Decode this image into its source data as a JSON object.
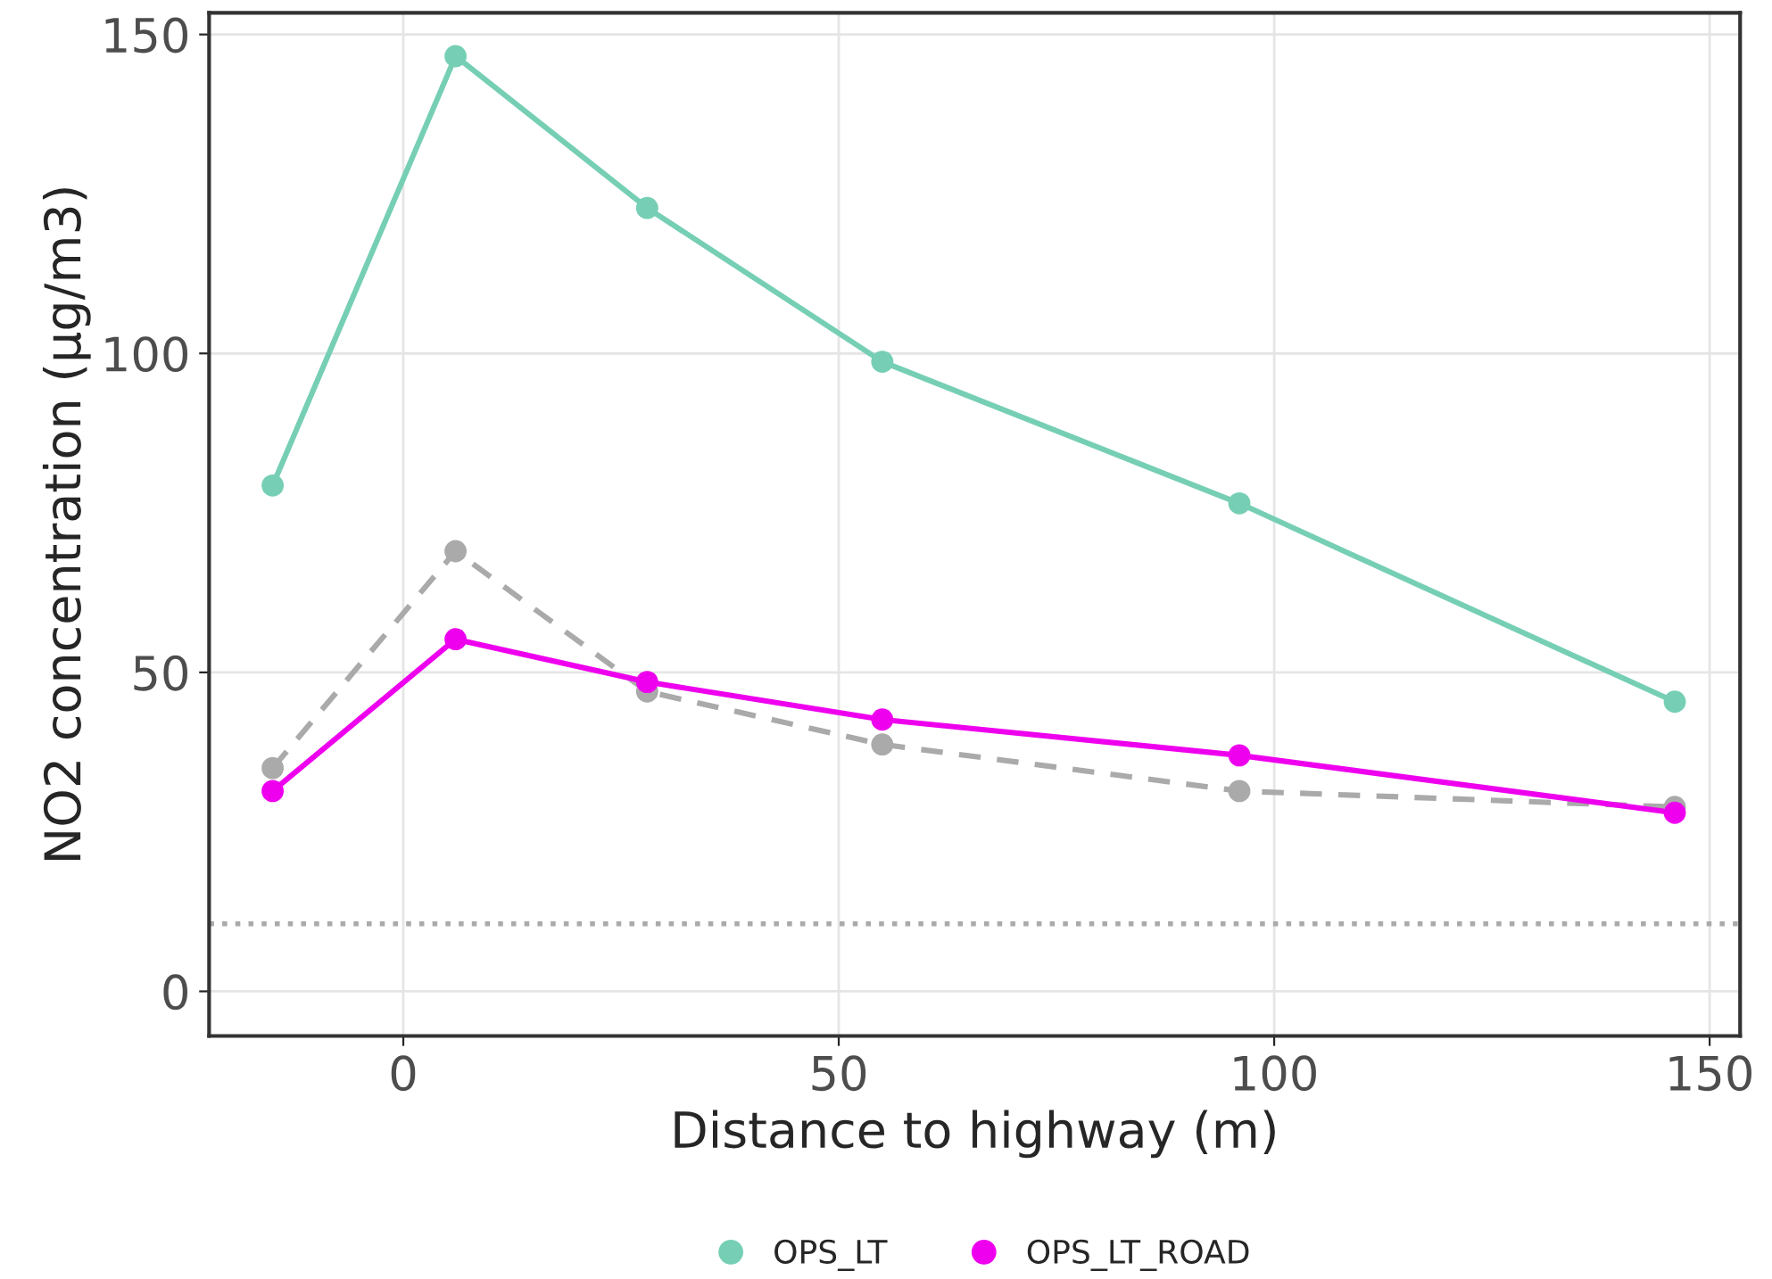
{
  "chart_data": {
    "type": "line",
    "xlabel": "Distance to highway (m)",
    "ylabel": "NO2 concentration (µg/m3)",
    "x": [
      -15,
      6,
      28,
      55,
      96,
      146
    ],
    "series": [
      {
        "name": "OPS_LT",
        "color": "#76cfb4",
        "values": [
          79.3,
          146.6,
          122.8,
          98.7,
          76.5,
          45.4
        ]
      },
      {
        "color": "#aaaaaa",
        "line_style": "dashed",
        "values": [
          35,
          69,
          47,
          38.7,
          31.4,
          28.9
        ]
      },
      {
        "name": "OPS_LT_ROAD",
        "color": "#ee00ee",
        "values": [
          31.4,
          55.2,
          48.5,
          42.6,
          37,
          28
        ]
      }
    ],
    "xlim": [
      -22.3,
      153.5
    ],
    "xticks": [
      0,
      50,
      100,
      150
    ],
    "ylim": [
      -7,
      153.4
    ],
    "yticks": [
      0,
      50,
      100,
      150
    ],
    "ref_lines": [
      {
        "axis": "y",
        "value": 10.6,
        "color": "#aaaaaa",
        "line_style": "dotted"
      }
    ],
    "grid": true,
    "legend": "bottom",
    "marker": "circle",
    "line_style": "solid"
  }
}
